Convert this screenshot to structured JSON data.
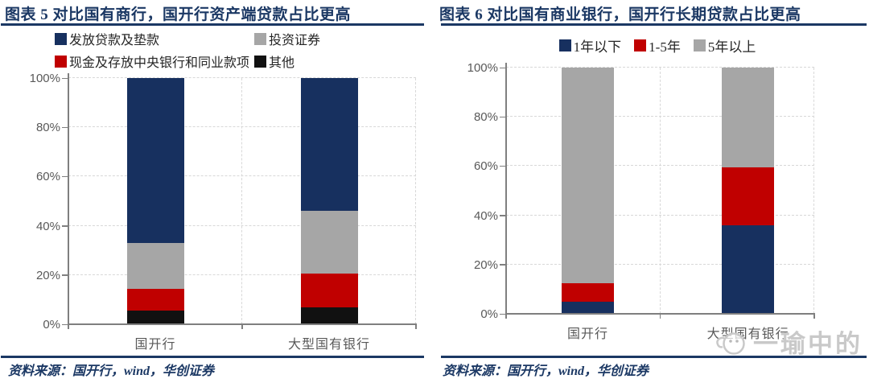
{
  "watermark": {
    "text": "一瑜中的"
  },
  "charts": [
    {
      "title": "图表 5  对比国有商行，国开行资产端贷款占比更高",
      "source": "资料来源：国开行，wind，华创证券",
      "chart_data": {
        "type": "bar",
        "stacked": true,
        "unit": "percent-of-total",
        "title": "对比国有商行，国开行资产端贷款占比更高",
        "categories": [
          "国开行",
          "大型国有银行"
        ],
        "series": [
          {
            "name": "发放贷款及垫款",
            "color": "#17305f",
            "values": [
              67,
              54
            ]
          },
          {
            "name": "投资证券",
            "color": "#a6a6a6",
            "values": [
              18.5,
              25.5
            ]
          },
          {
            "name": "现金及存放中央银行和同业款项",
            "color": "#c00000",
            "values": [
              9,
              13.5
            ]
          },
          {
            "name": "其他",
            "color": "#111111",
            "values": [
              5.5,
              7
            ]
          }
        ],
        "stack_bottom_to_top": [
          "其他",
          "现金及存放中央银行和同业款项",
          "投资证券",
          "发放贷款及垫款"
        ],
        "ylim": [
          0,
          100
        ],
        "yticks": [
          "0%",
          "20%",
          "40%",
          "60%",
          "80%",
          "100%"
        ],
        "grid": "dashed",
        "legend_position": "top-left-two-rows",
        "bar_centers_pct": [
          25,
          75
        ]
      }
    },
    {
      "title": "图表 6  对比国有商业银行，国开行长期贷款占比更高",
      "source": "资料来源：国开行，wind，华创证券",
      "chart_data": {
        "type": "bar",
        "stacked": true,
        "unit": "percent-of-total",
        "title": "对比国有商业银行，国开行长期贷款占比更高",
        "categories": [
          "国开行",
          "大型国有银行"
        ],
        "series": [
          {
            "name": "1年以下",
            "color": "#17305f",
            "values": [
              5,
              36
            ]
          },
          {
            "name": "1-5年",
            "color": "#c00000",
            "values": [
              7.5,
              23.5
            ]
          },
          {
            "name": "5年以上",
            "color": "#a6a6a6",
            "values": [
              87.5,
              40.5
            ]
          }
        ],
        "stack_bottom_to_top": [
          "1年以下",
          "1-5年",
          "5年以上"
        ],
        "ylim": [
          0,
          100
        ],
        "yticks": [
          "0%",
          "20%",
          "40%",
          "60%",
          "80%",
          "100%"
        ],
        "grid": "dashed",
        "legend_position": "top-center",
        "bar_centers_pct": [
          26.5,
          78.5
        ]
      }
    }
  ]
}
